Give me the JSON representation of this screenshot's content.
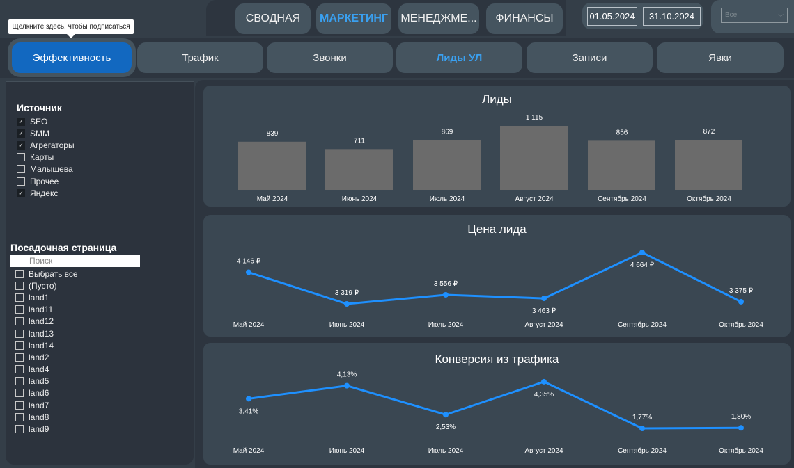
{
  "nav": {
    "items": [
      "СВОДНАЯ",
      "МАРКЕТИНГ",
      "МЕНЕДЖМЕ...",
      "ФИНАНСЫ"
    ],
    "active": 1
  },
  "dates": {
    "from": "01.05.2024",
    "to": "31.10.2024"
  },
  "dropdown": {
    "value": "Все"
  },
  "tooltip": "Щелкните здесь, чтобы подписаться",
  "tabs": {
    "items": [
      "Эффективность",
      "Трафик",
      "Звонки",
      "Лиды УЛ",
      "Записи",
      "Явки"
    ]
  },
  "filters": {
    "source": {
      "title": "Источник",
      "items": [
        {
          "label": "SEO",
          "checked": true
        },
        {
          "label": "SMM",
          "checked": true
        },
        {
          "label": "Агрегаторы",
          "checked": true
        },
        {
          "label": "Карты",
          "checked": false
        },
        {
          "label": "Малышева",
          "checked": false
        },
        {
          "label": "Прочее",
          "checked": false
        },
        {
          "label": "Яндекс",
          "checked": true
        }
      ]
    },
    "landing": {
      "title": "Посадочная страница",
      "search_placeholder": "Поиск",
      "items": [
        "Выбрать все",
        "(Пусто)",
        "land1",
        "land11",
        "land12",
        "land13",
        "land14",
        "land2",
        "land4",
        "land5",
        "land6",
        "land7",
        "land8",
        "land9"
      ]
    }
  },
  "colors": {
    "accent": "#1e90ff",
    "bar": "#6b6b6b"
  },
  "chart_data": [
    {
      "type": "bar",
      "title": "Лиды",
      "categories": [
        "Май 2024",
        "Июнь 2024",
        "Июль 2024",
        "Август 2024",
        "Сентябрь 2024",
        "Октябрь 2024"
      ],
      "values": [
        839,
        711,
        869,
        1115,
        856,
        872
      ],
      "labels": [
        "839",
        "711",
        "869",
        "1 115",
        "856",
        "872"
      ]
    },
    {
      "type": "line",
      "title": "Цена лида",
      "categories": [
        "Май 2024",
        "Июнь 2024",
        "Июль 2024",
        "Август 2024",
        "Сентябрь 2024",
        "Октябрь 2024"
      ],
      "values": [
        4146,
        3319,
        3556,
        3463,
        4664,
        3375
      ],
      "labels": [
        "4 146 ₽",
        "3 319 ₽",
        "3 556 ₽",
        "3 463 ₽",
        "4 664 ₽",
        "3 375 ₽"
      ]
    },
    {
      "type": "line",
      "title": "Конверсия из трафика",
      "categories": [
        "Май 2024",
        "Июнь 2024",
        "Июль 2024",
        "Август 2024",
        "Сентябрь 2024",
        "Октябрь 2024"
      ],
      "values": [
        3.41,
        4.13,
        2.53,
        4.35,
        1.77,
        1.8
      ],
      "labels": [
        "3,41%",
        "4,13%",
        "2,53%",
        "4,35%",
        "1,77%",
        "1,80%"
      ]
    }
  ]
}
